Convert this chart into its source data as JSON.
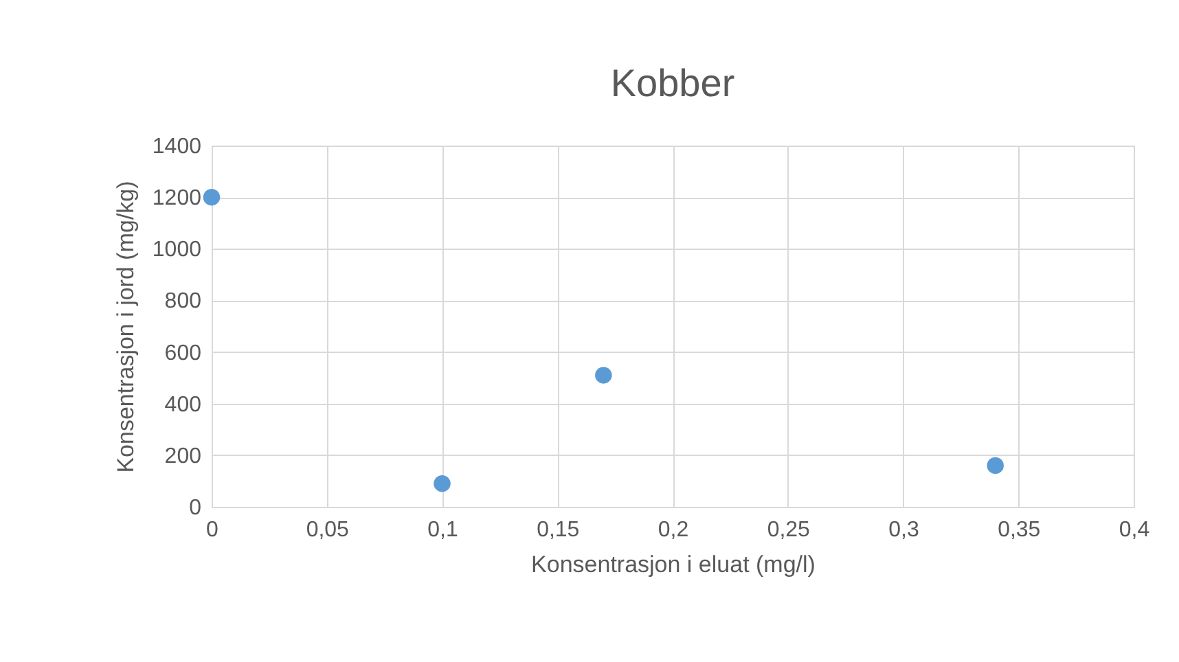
{
  "chart_data": {
    "type": "scatter",
    "title": "Kobber",
    "xlabel": "Konsentrasjon i eluat (mg/l)",
    "ylabel": "Konsentrasjon i jord (mg/kg)",
    "x": [
      0,
      0.1,
      0.17,
      0.34
    ],
    "series": [
      {
        "color": "#5b9bd5",
        "values": [
          1200,
          90,
          510,
          160
        ]
      }
    ],
    "xlim": [
      0,
      0.4
    ],
    "xticks": [
      0,
      {
        "value": 0.05,
        "label": "0,05"
      },
      {
        "value": 0.1,
        "label": "0,1"
      },
      {
        "value": 0.15,
        "label": "0,15"
      },
      {
        "value": 0.2,
        "label": "0,2"
      },
      {
        "value": 0.25,
        "label": "0,25"
      },
      {
        "value": 0.3,
        "label": "0,3"
      },
      {
        "value": 0.35,
        "label": "0,35"
      },
      {
        "value": 0.4,
        "label": "0,4"
      }
    ],
    "ylim": [
      0,
      1400
    ],
    "yticks": [
      0,
      200,
      400,
      600,
      800,
      1000,
      1200,
      1400
    ],
    "grid": true,
    "marker": "circle",
    "legend": false
  }
}
